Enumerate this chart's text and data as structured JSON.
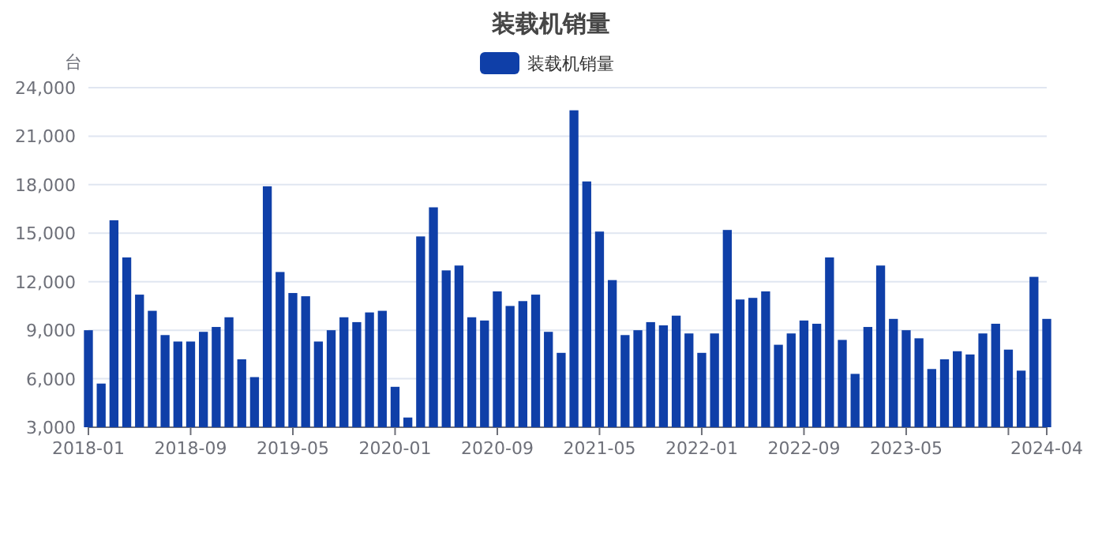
{
  "chart_data": {
    "type": "bar",
    "title": "装载机销量",
    "ylabel": "台",
    "x": [
      "2018-01",
      "2018-02",
      "2018-03",
      "2018-04",
      "2018-05",
      "2018-06",
      "2018-07",
      "2018-08",
      "2018-09",
      "2018-10",
      "2018-11",
      "2018-12",
      "2019-01",
      "2019-02",
      "2019-03",
      "2019-04",
      "2019-05",
      "2019-06",
      "2019-07",
      "2019-08",
      "2019-09",
      "2019-10",
      "2019-11",
      "2019-12",
      "2020-01",
      "2020-02",
      "2020-03",
      "2020-04",
      "2020-05",
      "2020-06",
      "2020-07",
      "2020-08",
      "2020-09",
      "2020-10",
      "2020-11",
      "2020-12",
      "2021-01",
      "2021-02",
      "2021-03",
      "2021-04",
      "2021-05",
      "2021-06",
      "2021-07",
      "2021-08",
      "2021-09",
      "2021-10",
      "2021-11",
      "2021-12",
      "2022-01",
      "2022-02",
      "2022-03",
      "2022-04",
      "2022-05",
      "2022-06",
      "2022-07",
      "2022-08",
      "2022-09",
      "2022-10",
      "2022-11",
      "2022-12",
      "2023-01",
      "2023-02",
      "2023-03",
      "2023-04",
      "2023-05",
      "2023-06",
      "2023-07",
      "2023-08",
      "2023-09",
      "2023-10",
      "2023-11",
      "2023-12",
      "2024-01",
      "2024-02",
      "2024-03",
      "2024-04"
    ],
    "series": [
      {
        "name": "装载机销量",
        "color": "#0f3fa8",
        "values": [
          9000,
          5700,
          15800,
          13500,
          11200,
          10200,
          8700,
          8300,
          8300,
          8900,
          9200,
          9800,
          7200,
          6100,
          17900,
          12600,
          11300,
          11100,
          8300,
          9000,
          9800,
          9500,
          10100,
          10200,
          5500,
          3600,
          14800,
          16600,
          12700,
          13000,
          9800,
          9600,
          11400,
          10500,
          10800,
          11200,
          8900,
          7600,
          22600,
          18200,
          15100,
          12100,
          8700,
          9000,
          9500,
          9300,
          9900,
          8800,
          7600,
          8800,
          15200,
          10900,
          11000,
          11400,
          8100,
          8800,
          9600,
          9400,
          13500,
          8400,
          6300,
          9200,
          13000,
          9700,
          9000,
          8500,
          6600,
          7200,
          7700,
          7500,
          8800,
          9400,
          7800,
          6500,
          12300,
          9700
        ]
      }
    ],
    "xlim": [
      "2018-01",
      "2024-04"
    ],
    "xticks": [
      "2018-01",
      "2018-09",
      "2019-05",
      "2020-01",
      "2020-09",
      "2021-05",
      "2022-01",
      "2022-09",
      "2023-05",
      {
        "value": "2024-01",
        "label": null
      },
      "2024-04"
    ],
    "ylim": [
      3000,
      24000
    ],
    "yticks": [
      {
        "value": 3000,
        "label": "3,000"
      },
      {
        "value": 6000,
        "label": "6,000"
      },
      {
        "value": 9000,
        "label": "9,000"
      },
      {
        "value": 12000,
        "label": "12,000"
      },
      {
        "value": 15000,
        "label": "15,000"
      },
      {
        "value": 18000,
        "label": "18,000"
      },
      {
        "value": 21000,
        "label": "21,000"
      },
      {
        "value": 24000,
        "label": "24,000"
      }
    ],
    "grid": "y",
    "legend": "top"
  }
}
